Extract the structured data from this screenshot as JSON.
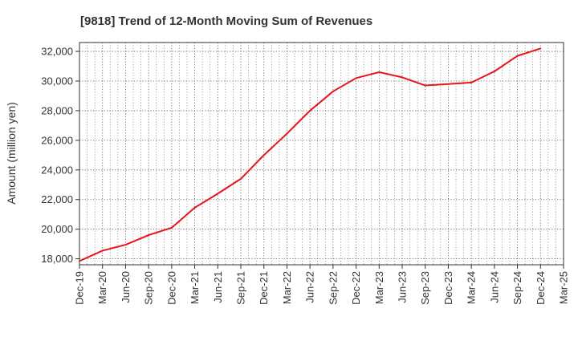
{
  "chart_data": {
    "type": "line",
    "title": "[9818]  Trend of 12-Month Moving Sum of Revenues",
    "xlabel": "",
    "ylabel": "Amount (million yen)",
    "ylim": [
      17600,
      32600
    ],
    "yticks": [
      18000,
      20000,
      22000,
      24000,
      26000,
      28000,
      30000,
      32000
    ],
    "ytick_labels": [
      "18,000",
      "20,000",
      "22,000",
      "24,000",
      "26,000",
      "28,000",
      "30,000",
      "32,000"
    ],
    "xticks": [
      "Dec-19",
      "Mar-20",
      "Jun-20",
      "Sep-20",
      "Dec-20",
      "Mar-21",
      "Jun-21",
      "Sep-21",
      "Dec-21",
      "Mar-22",
      "Jun-22",
      "Sep-22",
      "Dec-22",
      "Mar-23",
      "Jun-23",
      "Sep-23",
      "Dec-23",
      "Mar-24",
      "Jun-24",
      "Sep-24",
      "Dec-24",
      "Mar-25"
    ],
    "grid": true,
    "line_color": "#e8141b",
    "series": [
      {
        "x": [
          "Dec-19",
          "Mar-20",
          "Jun-20",
          "Sep-20",
          "Dec-20",
          "Mar-21",
          "Jun-21",
          "Sep-21",
          "Dec-21",
          "Mar-22",
          "Jun-22",
          "Sep-22",
          "Dec-22",
          "Mar-23",
          "Jun-23",
          "Sep-23",
          "Dec-23",
          "Mar-24",
          "Jun-24",
          "Sep-24",
          "Dec-24"
        ],
        "values": [
          17850,
          18550,
          18950,
          19600,
          20100,
          21450,
          22400,
          23400,
          25000,
          26450,
          28000,
          29300,
          30200,
          30600,
          30250,
          29700,
          29800,
          29900,
          30650,
          31700,
          32200
        ]
      }
    ]
  }
}
